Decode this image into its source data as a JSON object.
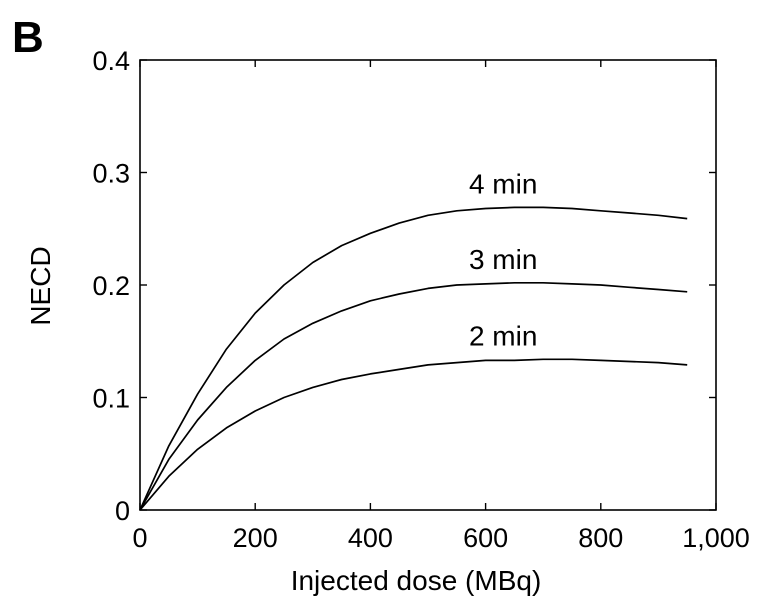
{
  "panel_label": "B",
  "chart_data": {
    "type": "line",
    "xlabel": "Injected dose (MBq)",
    "ylabel": "NECD",
    "xlim": [
      0,
      1000
    ],
    "ylim": [
      0,
      0.4
    ],
    "xticks": [
      0,
      200,
      400,
      600,
      800,
      1000
    ],
    "xtick_labels": [
      "0",
      "200",
      "400",
      "600",
      "800",
      "1,000"
    ],
    "yticks": [
      0,
      0.1,
      0.2,
      0.3,
      0.4
    ],
    "ytick_labels": [
      "0",
      "0.1",
      "0.2",
      "0.3",
      "0.4"
    ],
    "grid": false,
    "x": [
      0,
      50,
      100,
      150,
      200,
      250,
      300,
      350,
      400,
      450,
      500,
      550,
      600,
      650,
      700,
      750,
      800,
      850,
      900,
      950
    ],
    "series": [
      {
        "name": "4 min",
        "values": [
          0,
          0.057,
          0.103,
          0.143,
          0.175,
          0.2,
          0.22,
          0.235,
          0.246,
          0.255,
          0.262,
          0.266,
          0.268,
          0.269,
          0.269,
          0.268,
          0.266,
          0.264,
          0.262,
          0.259
        ]
      },
      {
        "name": "3 min",
        "values": [
          0,
          0.045,
          0.08,
          0.109,
          0.133,
          0.152,
          0.166,
          0.177,
          0.186,
          0.192,
          0.197,
          0.2,
          0.201,
          0.202,
          0.202,
          0.201,
          0.2,
          0.198,
          0.196,
          0.194
        ]
      },
      {
        "name": "2 min",
        "values": [
          0,
          0.03,
          0.054,
          0.073,
          0.088,
          0.1,
          0.109,
          0.116,
          0.121,
          0.125,
          0.129,
          0.131,
          0.133,
          0.133,
          0.134,
          0.134,
          0.133,
          0.132,
          0.131,
          0.129
        ]
      }
    ]
  }
}
